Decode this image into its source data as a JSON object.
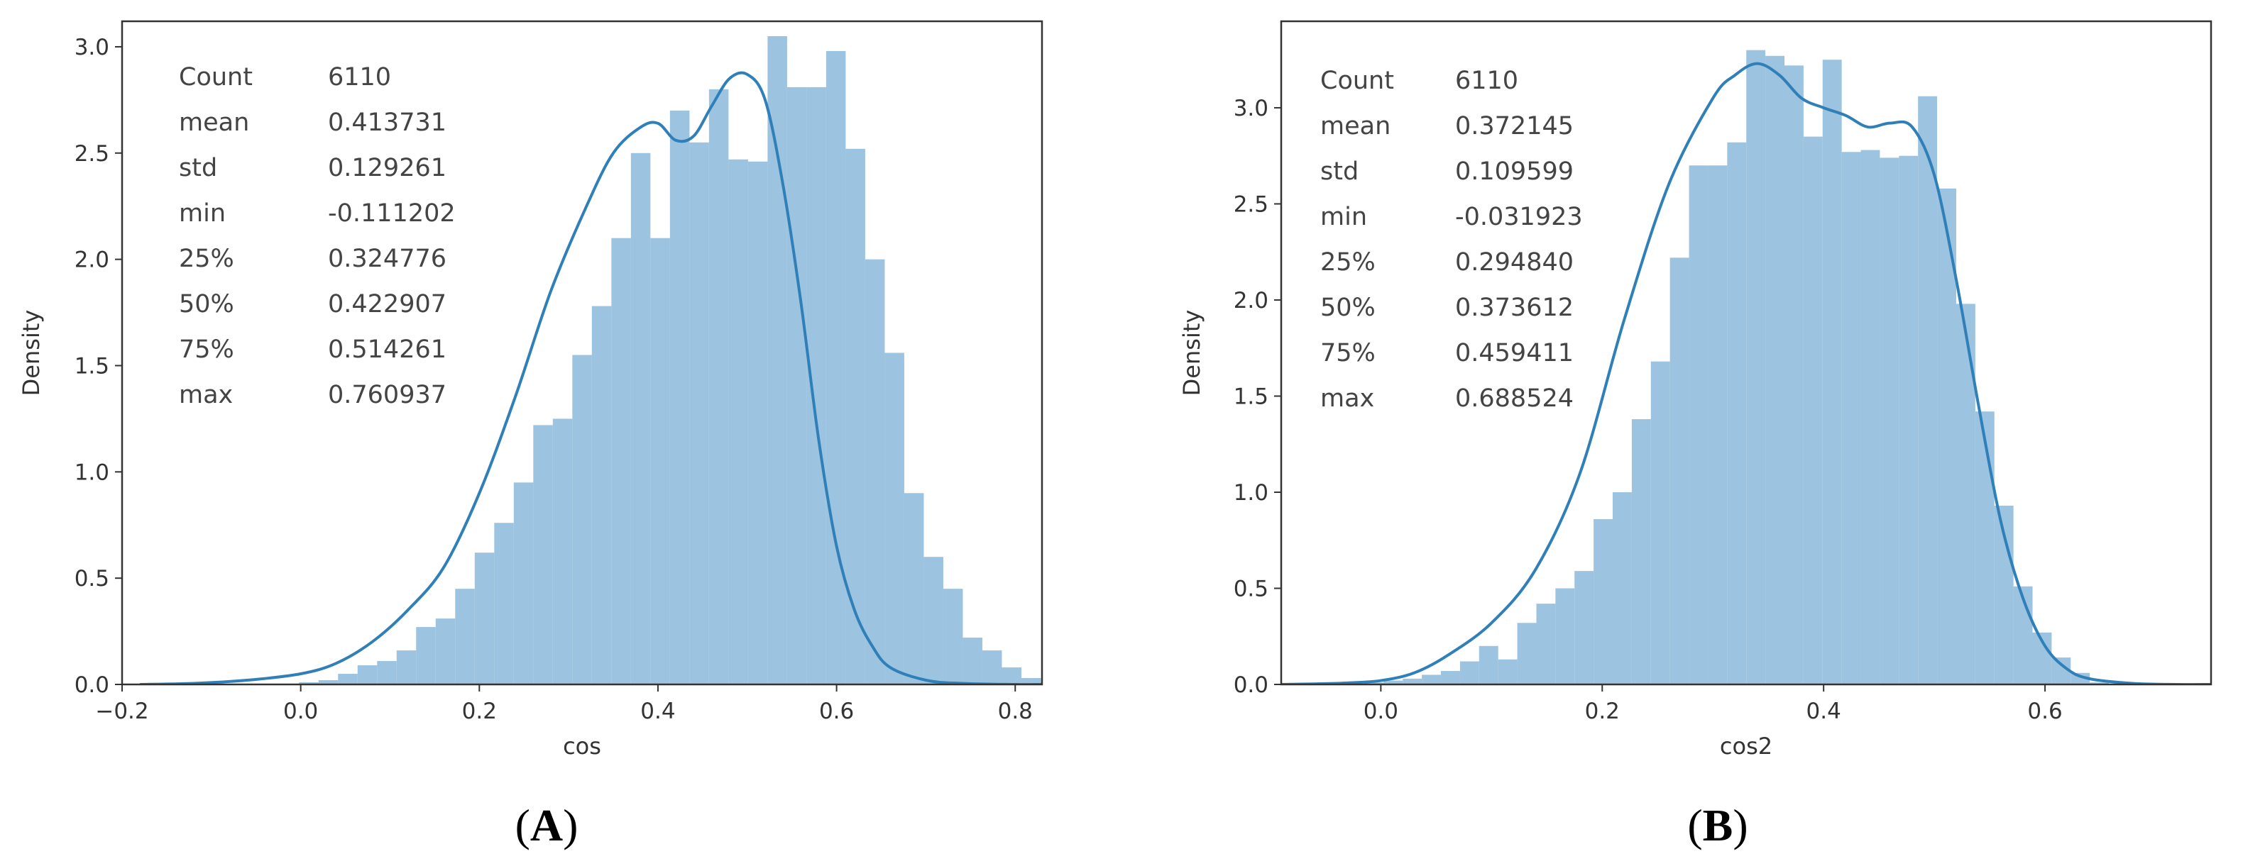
{
  "chart_data": [
    {
      "type": "bar",
      "panel": "A",
      "caption": {
        "open": "(",
        "letter": "A",
        "close": ")"
      },
      "xlabel": "cos",
      "ylabel": "Density",
      "xlim": [
        -0.2,
        0.83
      ],
      "ylim": [
        0,
        3.12
      ],
      "xticks": [
        -0.2,
        0.0,
        0.2,
        0.4,
        0.6,
        0.8
      ],
      "xtick_labels": [
        "−0.2",
        "0.0",
        "0.2",
        "0.4",
        "0.6",
        "0.8"
      ],
      "yticks": [
        0.0,
        0.5,
        1.0,
        1.5,
        2.0,
        2.5,
        3.0
      ],
      "ytick_labels": [
        "0.0",
        "0.5",
        "1.0",
        "1.5",
        "2.0",
        "2.5",
        "3.0"
      ],
      "grid": false,
      "bar_color": "#9cc3df",
      "kde_color": "#2f7fb8",
      "hist": {
        "bin_start": -0.1112,
        "bin_width": 0.02186,
        "values": [
          0.0,
          0.0,
          0.0,
          0.0,
          0.0,
          0.01,
          0.02,
          0.05,
          0.09,
          0.11,
          0.16,
          0.27,
          0.31,
          0.45,
          0.62,
          0.76,
          0.95,
          1.22,
          1.25,
          1.55,
          1.78,
          2.1,
          2.5,
          2.1,
          2.7,
          2.55,
          2.8,
          2.47,
          2.46,
          3.05,
          2.81,
          2.81,
          2.98,
          2.52,
          2.0,
          1.56,
          0.9,
          0.6,
          0.45,
          0.22,
          0.16,
          0.08,
          0.03,
          0.01,
          0.0,
          0.0,
          0.0,
          0.0
        ]
      },
      "kde": {
        "x": [
          -0.18,
          -0.12,
          -0.06,
          0.0,
          0.04,
          0.08,
          0.12,
          0.16,
          0.2,
          0.24,
          0.28,
          0.32,
          0.35,
          0.38,
          0.4,
          0.42,
          0.44,
          0.46,
          0.48,
          0.5,
          0.52,
          0.54,
          0.56,
          0.58,
          0.6,
          0.62,
          0.64,
          0.66,
          0.7,
          0.74,
          0.8,
          0.83
        ],
        "y": [
          0.0,
          0.005,
          0.02,
          0.05,
          0.1,
          0.2,
          0.35,
          0.55,
          0.9,
          1.35,
          1.85,
          2.25,
          2.5,
          2.62,
          2.64,
          2.56,
          2.58,
          2.72,
          2.85,
          2.87,
          2.75,
          2.35,
          1.8,
          1.15,
          0.65,
          0.35,
          0.18,
          0.08,
          0.02,
          0.005,
          0.0,
          0.0
        ]
      },
      "stats": [
        {
          "label": "Count",
          "value": "6110"
        },
        {
          "label": "mean",
          "value": "0.413731"
        },
        {
          "label": "std",
          "value": "0.129261"
        },
        {
          "label": "min",
          "value": "-0.111202"
        },
        {
          "label": "25%",
          "value": "0.324776"
        },
        {
          "label": "50%",
          "value": "0.422907"
        },
        {
          "label": "75%",
          "value": "0.514261"
        },
        {
          "label": "max",
          "value": "0.760937"
        }
      ]
    },
    {
      "type": "bar",
      "panel": "B",
      "caption": {
        "open": "(",
        "letter": "B",
        "close": ")"
      },
      "xlabel": "cos2",
      "ylabel": "Density",
      "xlim": [
        -0.09,
        0.75
      ],
      "ylim": [
        0,
        3.45
      ],
      "xticks": [
        0.0,
        0.2,
        0.4,
        0.6
      ],
      "xtick_labels": [
        "0.0",
        "0.2",
        "0.4",
        "0.6"
      ],
      "yticks": [
        0.0,
        0.5,
        1.0,
        1.5,
        2.0,
        2.5,
        3.0
      ],
      "ytick_labels": [
        "0.0",
        "0.5",
        "1.0",
        "1.5",
        "2.0",
        "2.5",
        "3.0"
      ],
      "grid": false,
      "bar_color": "#9cc3df",
      "kde_color": "#2f7fb8",
      "hist": {
        "bin_start": -0.0319,
        "bin_width": 0.01724,
        "values": [
          0.0,
          0.01,
          0.02,
          0.03,
          0.05,
          0.07,
          0.12,
          0.2,
          0.13,
          0.32,
          0.42,
          0.5,
          0.59,
          0.86,
          1.0,
          1.38,
          1.68,
          2.22,
          2.7,
          2.7,
          2.82,
          3.3,
          3.27,
          3.22,
          2.85,
          3.25,
          2.77,
          2.78,
          2.74,
          2.75,
          3.06,
          2.58,
          1.98,
          1.42,
          0.93,
          0.51,
          0.27,
          0.14,
          0.06,
          0.01
        ]
      },
      "kde": {
        "x": [
          -0.09,
          -0.06,
          -0.03,
          0.0,
          0.03,
          0.06,
          0.1,
          0.14,
          0.18,
          0.22,
          0.26,
          0.3,
          0.32,
          0.34,
          0.36,
          0.38,
          0.4,
          0.42,
          0.44,
          0.46,
          0.48,
          0.5,
          0.52,
          0.54,
          0.56,
          0.58,
          0.6,
          0.62,
          0.64,
          0.68,
          0.72,
          0.75
        ],
        "y": [
          0.0,
          0.003,
          0.008,
          0.02,
          0.06,
          0.15,
          0.32,
          0.6,
          1.1,
          1.9,
          2.6,
          3.05,
          3.17,
          3.23,
          3.17,
          3.05,
          3.0,
          2.96,
          2.9,
          2.92,
          2.9,
          2.65,
          2.1,
          1.45,
          0.85,
          0.45,
          0.2,
          0.08,
          0.03,
          0.005,
          0.0,
          0.0
        ]
      },
      "stats": [
        {
          "label": "Count",
          "value": "6110"
        },
        {
          "label": "mean",
          "value": "0.372145"
        },
        {
          "label": "std",
          "value": "0.109599"
        },
        {
          "label": "min",
          "value": "-0.031923"
        },
        {
          "label": "25%",
          "value": "0.294840"
        },
        {
          "label": "50%",
          "value": "0.373612"
        },
        {
          "label": "75%",
          "value": "0.459411"
        },
        {
          "label": "max",
          "value": "0.688524"
        }
      ]
    }
  ]
}
